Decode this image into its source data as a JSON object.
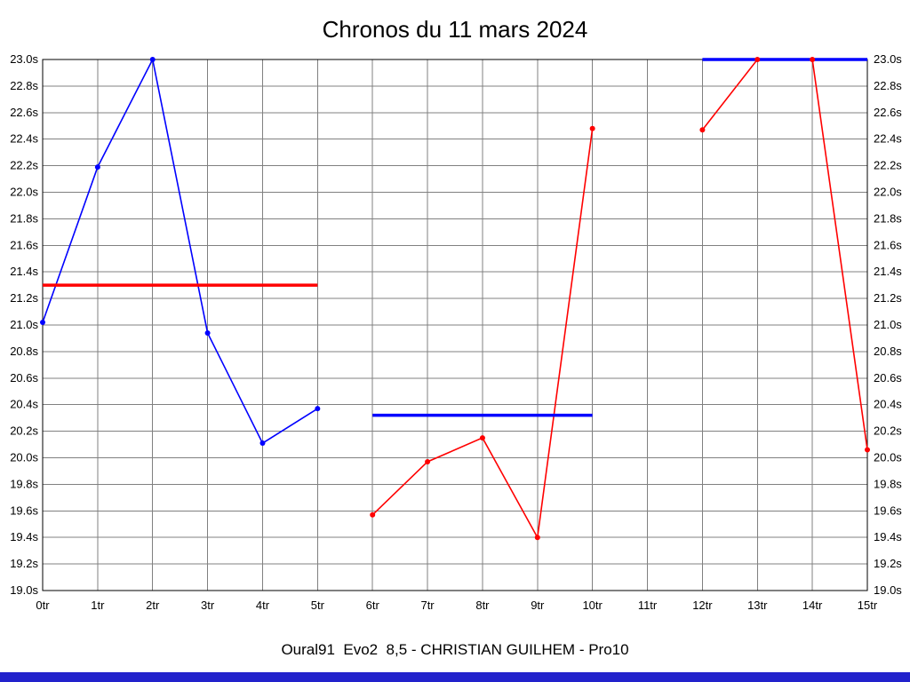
{
  "title": "Chronos du 11 mars 2024",
  "caption": "Oural91  Evo2  8,5 - CHRISTIAN GUILHEM - Pro10",
  "colors": {
    "blue_series": "#0000ff",
    "red_series": "#ff0000",
    "grid": "#808080",
    "axis_border": "#000000",
    "bottom_bar": "#2222cc",
    "text": "#000000"
  },
  "chart_data": {
    "type": "line",
    "title": "Chronos du 11 mars 2024",
    "xlabel": "",
    "ylabel": "",
    "x_unit": "tr",
    "y_unit": "s",
    "x_tick_labels": [
      "0tr",
      "1tr",
      "2tr",
      "3tr",
      "4tr",
      "5tr",
      "6tr",
      "7tr",
      "8tr",
      "9tr",
      "10tr",
      "11tr",
      "12tr",
      "13tr",
      "14tr",
      "15tr"
    ],
    "ylim": [
      19.0,
      23.0
    ],
    "y_tick_step": 0.2,
    "grid": true,
    "legend": "none",
    "series": [
      {
        "name": "heat-1-laps",
        "role": "laps",
        "color": "#0000ff",
        "x": [
          0,
          1,
          2,
          3,
          4,
          5
        ],
        "values": [
          21.02,
          22.19,
          23.0,
          20.94,
          20.11,
          20.37
        ]
      },
      {
        "name": "heat-1-average",
        "role": "average",
        "color": "#ff0000",
        "x": [
          0,
          5
        ],
        "values": [
          21.3,
          21.3
        ]
      },
      {
        "name": "heat-2-laps",
        "role": "laps",
        "color": "#ff0000",
        "x": [
          6,
          7,
          8,
          9,
          10
        ],
        "values": [
          19.57,
          19.97,
          20.15,
          19.4,
          22.48
        ]
      },
      {
        "name": "heat-2-average",
        "role": "average",
        "color": "#0000ff",
        "x": [
          6,
          10
        ],
        "values": [
          20.32,
          20.32
        ]
      },
      {
        "name": "heat-3-laps",
        "role": "laps",
        "color": "#ff0000",
        "x": [
          12,
          13,
          14,
          15
        ],
        "values": [
          22.47,
          23.0,
          23.0,
          20.06
        ]
      },
      {
        "name": "heat-3-average",
        "role": "average",
        "color": "#0000ff",
        "x": [
          12,
          15
        ],
        "values": [
          23.0,
          23.0
        ]
      }
    ]
  }
}
